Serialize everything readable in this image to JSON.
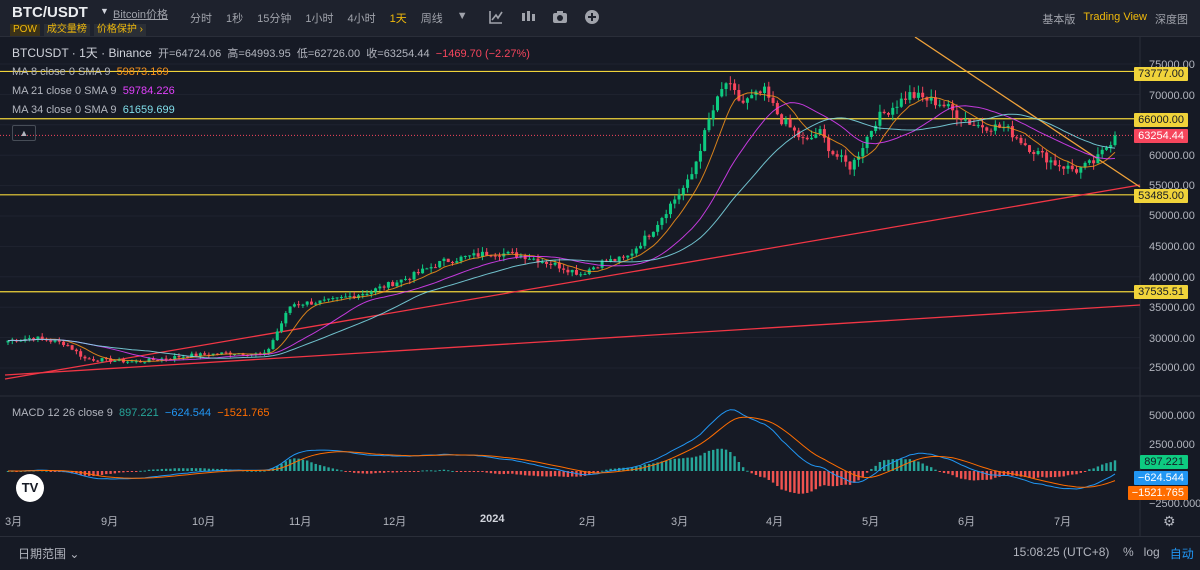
{
  "header": {
    "symbol": "BTC/USDT",
    "coin_link": "Bitcoin价格",
    "tags": [
      "POW",
      "成交量榜",
      "价格保护 ›"
    ],
    "intervals": [
      "分时",
      "1秒",
      "15分钟",
      "1小时",
      "4小时",
      "1天",
      "周线"
    ],
    "active_interval": "1天",
    "views": [
      "基本版",
      "Trading View",
      "深度图"
    ],
    "active_view": "Trading View",
    "icons": [
      "dropdown-caret-icon",
      "chart-type-icon",
      "indicators-icon",
      "screenshot-icon",
      "add-icon"
    ]
  },
  "ohlc": {
    "title": "BTCUSDT · 1天 · Binance",
    "open": "开=64724.06",
    "high": "高=64993.95",
    "low": "低=62726.00",
    "close": "收=63254.44",
    "change": "−1469.70 (−2.27%)"
  },
  "indicators": {
    "ma": [
      {
        "label": "MA 8 close 0 SMA 9",
        "value": "59873.169",
        "color": "#f7931a"
      },
      {
        "label": "MA 21 close 0 SMA 9",
        "value": "59784.226",
        "color": "#e040fb"
      },
      {
        "label": "MA 34 close 0 SMA 9",
        "value": "61659.699",
        "color": "#80deea"
      }
    ],
    "macd": {
      "label": "MACD 12 26 close 9",
      "hist": "897.221",
      "macd": "−624.544",
      "signal": "−1521.765"
    }
  },
  "price_axis": [
    "75000.00",
    "70000.00",
    "65000.00",
    "60000.00",
    "55000.00",
    "50000.00",
    "45000.00",
    "40000.00",
    "35000.00",
    "30000.00",
    "25000.00"
  ],
  "macd_axis": [
    "5000.000",
    "2500.000",
    "−2500.000"
  ],
  "price_tags": {
    "levels": [
      "73777.00",
      "66000.00",
      "53485.00",
      "37535.51"
    ],
    "last": "63254.44",
    "macd_hist": "897.221",
    "macd_line": "−624.544",
    "macd_signal": "−1521.765"
  },
  "time_axis": [
    "3月",
    "9月",
    "10月",
    "11月",
    "12月",
    "2024",
    "2月",
    "3月",
    "4月",
    "5月",
    "6月",
    "7月"
  ],
  "bottom": {
    "date_range": "日期范围 ⌄",
    "clock": "15:08:25 (UTC+8)",
    "options": [
      "%",
      "log",
      "自动"
    ],
    "active_option": "自动"
  },
  "colors": {
    "up": "#0ecb81",
    "down": "#f6465d",
    "accent": "#f0b90b",
    "level": "#f0d33a"
  },
  "chart_data": {
    "type": "candlestick",
    "symbol": "BTCUSDT",
    "price_range": [
      20000,
      78000
    ],
    "horizontal_levels": [
      73777.0,
      66000.0,
      53485.0,
      37535.51
    ],
    "last_price": 63254.44,
    "close_path_approx": [
      {
        "t": "3月",
        "close": 29500
      },
      {
        "t": "9月",
        "close": 26500
      },
      {
        "t": "10月",
        "close": 27000
      },
      {
        "t": "11月",
        "close": 34500
      },
      {
        "t": "12月",
        "close": 37500
      },
      {
        "t": "2024",
        "close": 42500
      },
      {
        "t": "2月",
        "close": 43000
      },
      {
        "t": "3月",
        "close": 62000
      },
      {
        "t": "4月",
        "close": 70500
      },
      {
        "t": "5月",
        "close": 60500
      },
      {
        "t": "6月",
        "close": 67500
      },
      {
        "t": "7月",
        "close": 59000
      }
    ]
  }
}
